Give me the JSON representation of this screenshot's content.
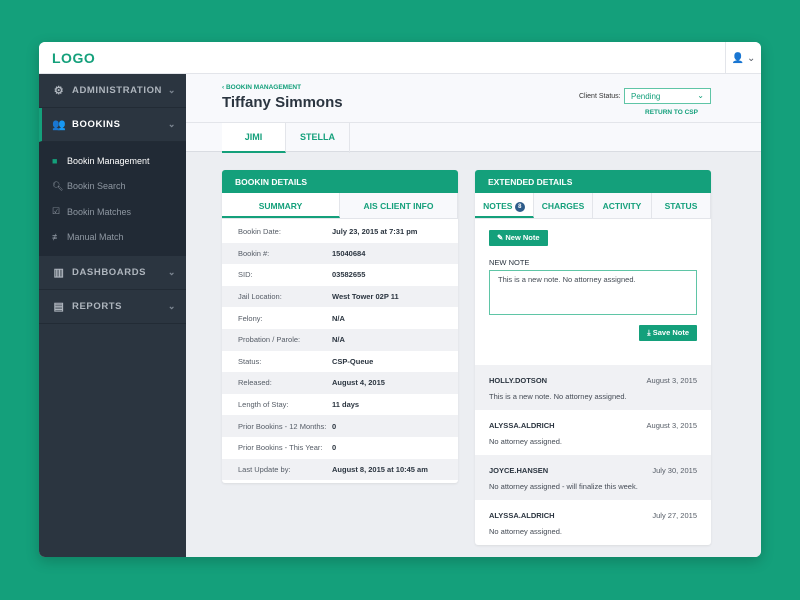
{
  "app": {
    "logo": "LOGO",
    "user_icon": "user-icon"
  },
  "sidebar": {
    "items": [
      {
        "label": "ADMINISTRATION",
        "icon": "gears-icon"
      },
      {
        "label": "BOOKINS",
        "icon": "users-icon"
      },
      {
        "label": "DASHBOARDS",
        "icon": "bar-chart-icon"
      },
      {
        "label": "REPORTS",
        "icon": "book-icon"
      }
    ],
    "subitems": [
      {
        "label": "Bookin Management",
        "icon": "file-icon"
      },
      {
        "label": "Bookin Search",
        "icon": "search-icon"
      },
      {
        "label": "Bookin Matches",
        "icon": "checkbox-icon"
      },
      {
        "label": "Manual Match",
        "icon": "sliders-icon"
      }
    ]
  },
  "header": {
    "breadcrumb": "‹ BOOKIN MANAGEMENT",
    "title": "Tiffany Simmons",
    "client_status_label": "Client Status:",
    "client_status_value": "Pending",
    "return_link": "RETURN TO CSP",
    "tabs": [
      "JIMI",
      "STELLA"
    ]
  },
  "bookin": {
    "title": "BOOKIN DETAILS",
    "tabs": [
      "SUMMARY",
      "AIS CLIENT INFO"
    ],
    "rows": [
      [
        "Bookin Date:",
        "July 23, 2015 at 7:31 pm"
      ],
      [
        "Bookin #:",
        "15040684"
      ],
      [
        "SID:",
        "03582655"
      ],
      [
        "Jail Location:",
        "West Tower 02P 11"
      ],
      [
        "Felony:",
        "N/A"
      ],
      [
        "Probation / Parole:",
        "N/A"
      ],
      [
        "Status:",
        "CSP-Queue"
      ],
      [
        "Released:",
        "August 4, 2015"
      ],
      [
        "Length of Stay:",
        "11 days"
      ],
      [
        "Prior Bookins - 12 Months:",
        "0"
      ],
      [
        "Prior Bookins - This Year:",
        "0"
      ],
      [
        "Last Update by:",
        "August 8, 2015 at 10:45 am"
      ]
    ]
  },
  "extended": {
    "title": "EXTENDED DETAILS",
    "tabs": [
      "NOTES",
      "CHARGES",
      "ACTIVITY",
      "STATUS"
    ],
    "notes_count": "8",
    "new_note_button": "New Note",
    "new_note_label": "NEW NOTE",
    "new_note_value": "This is a new note. No attorney assigned.",
    "save_button": "Save Note",
    "notes": [
      {
        "user": "HOLLY.DOTSON",
        "date": "August 3, 2015",
        "text": "This is a new note. No attorney assigned."
      },
      {
        "user": "ALYSSA.ALDRICH",
        "date": "August 3, 2015",
        "text": "No attorney assigned."
      },
      {
        "user": "JOYCE.HANSEN",
        "date": "July 30, 2015",
        "text": "No attorney assigned - will finalize this week."
      },
      {
        "user": "ALYSSA.ALDRICH",
        "date": "July 27, 2015",
        "text": "No attorney assigned."
      }
    ]
  },
  "colors": {
    "accent": "#14a07b",
    "sidebar": "#2b3540",
    "badge": "#2e5c8a"
  }
}
